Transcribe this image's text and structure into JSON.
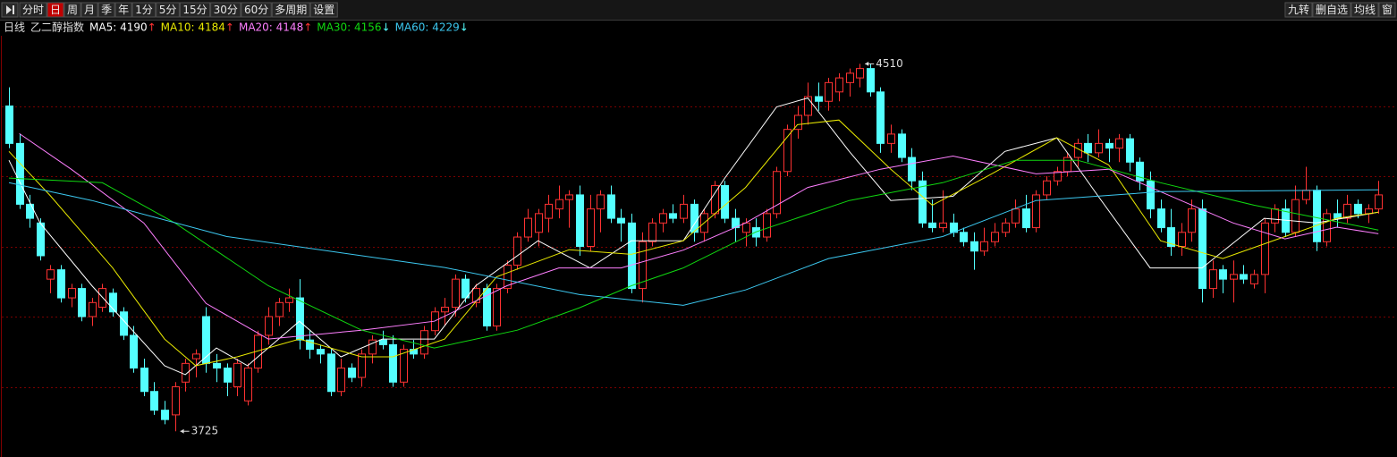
{
  "toolbar": {
    "left": [
      "分时",
      "日",
      "周",
      "月",
      "季",
      "年",
      "1分",
      "5分",
      "15分",
      "30分",
      "60分",
      "多周期",
      "设置"
    ],
    "selected_index": 1,
    "right": [
      "九转",
      "删自选",
      "均线",
      "窗"
    ]
  },
  "header": {
    "period": "日线",
    "name": "乙二醇指数"
  },
  "chart_data": {
    "type": "candlestick",
    "ylim": [
      3670,
      4570
    ],
    "yticks": [
      4420,
      4270,
      4120,
      3970,
      3820
    ],
    "grid": true,
    "up_color": "#ff3232",
    "down_color": "#54ffff",
    "open": [
      4420,
      4340,
      4210,
      4170,
      4050,
      4070,
      4010,
      4030,
      3970,
      3990,
      4020,
      3980,
      3930,
      3860,
      3810,
      3770,
      3760,
      3830,
      3880,
      3970,
      3870,
      3860,
      3820,
      3790,
      3860,
      3930,
      3970,
      4000,
      4010,
      3920,
      3900,
      3890,
      3810,
      3860,
      3840,
      3890,
      3920,
      3910,
      3830,
      3900,
      3890,
      3940,
      3980,
      3990,
      4050,
      4000,
      4030,
      3950,
      4030,
      4080,
      4140,
      4150,
      4180,
      4200,
      4220,
      4230,
      4120,
      4200,
      4230,
      4180,
      4170,
      4030,
      4130,
      4170,
      4190,
      4180,
      4210,
      4150,
      4190,
      4250,
      4180,
      4150,
      4160,
      4140,
      4190,
      4280,
      4370,
      4400,
      4440,
      4430,
      4450,
      4470,
      4480,
      4500,
      4450,
      4340,
      4360,
      4310,
      4260,
      4170,
      4160,
      4170,
      4150,
      4130,
      4110,
      4130,
      4150,
      4170,
      4200,
      4160,
      4230,
      4260,
      4280,
      4310,
      4340,
      4320,
      4340,
      4330,
      4350,
      4300,
      4260,
      4200,
      4160,
      4120,
      4150,
      4200,
      4030,
      4070,
      4050,
      4060,
      4040,
      4060,
      4170,
      4200,
      4150,
      4220,
      4240,
      4130,
      4190,
      4180,
      4210,
      4190,
      4200
    ],
    "high": [
      4460,
      4360,
      4230,
      4180,
      4080,
      4080,
      4040,
      4040,
      4010,
      4040,
      4030,
      3990,
      3950,
      3880,
      3830,
      3790,
      3830,
      3880,
      3900,
      3990,
      3890,
      3870,
      3880,
      3870,
      3940,
      3990,
      4010,
      4030,
      4050,
      3940,
      3910,
      3900,
      3880,
      3870,
      3900,
      3930,
      3940,
      3930,
      3910,
      3920,
      3950,
      3990,
      4010,
      4060,
      4060,
      4040,
      4040,
      4040,
      4090,
      4150,
      4200,
      4200,
      4230,
      4250,
      4240,
      4250,
      4230,
      4240,
      4250,
      4200,
      4190,
      4150,
      4180,
      4200,
      4210,
      4230,
      4220,
      4200,
      4260,
      4260,
      4200,
      4180,
      4180,
      4200,
      4290,
      4380,
      4420,
      4470,
      4470,
      4480,
      4490,
      4500,
      4510,
      4510,
      4460,
      4380,
      4370,
      4330,
      4280,
      4220,
      4240,
      4190,
      4160,
      4150,
      4160,
      4170,
      4180,
      4220,
      4230,
      4240,
      4270,
      4290,
      4320,
      4350,
      4360,
      4370,
      4350,
      4360,
      4360,
      4310,
      4280,
      4220,
      4200,
      4170,
      4220,
      4220,
      4090,
      4080,
      4090,
      4080,
      4070,
      4180,
      4210,
      4220,
      4250,
      4290,
      4250,
      4200,
      4220,
      4230,
      4220,
      4210,
      4260
    ],
    "low": [
      4330,
      4200,
      4160,
      4090,
      4020,
      4000,
      3990,
      3960,
      3950,
      3980,
      3970,
      3920,
      3850,
      3800,
      3760,
      3740,
      3725,
      3810,
      3840,
      3850,
      3830,
      3800,
      3800,
      3780,
      3850,
      3910,
      3950,
      3980,
      3900,
      3880,
      3870,
      3800,
      3800,
      3830,
      3820,
      3870,
      3900,
      3820,
      3820,
      3880,
      3880,
      3930,
      3950,
      3970,
      4000,
      3990,
      3940,
      3940,
      4020,
      4070,
      4130,
      4120,
      4150,
      4180,
      4160,
      4100,
      4110,
      4150,
      4170,
      4130,
      4020,
      4000,
      4120,
      4150,
      4170,
      4170,
      4130,
      4130,
      4180,
      4170,
      4130,
      4120,
      4120,
      4130,
      4180,
      4270,
      4350,
      4380,
      4410,
      4410,
      4430,
      4440,
      4460,
      4440,
      4320,
      4320,
      4300,
      4240,
      4160,
      4150,
      4150,
      4140,
      4120,
      4070,
      4100,
      4120,
      4140,
      4160,
      4150,
      4150,
      4220,
      4250,
      4270,
      4290,
      4300,
      4310,
      4300,
      4300,
      4280,
      4240,
      4180,
      4150,
      4100,
      4100,
      4130,
      4000,
      4010,
      4020,
      4000,
      4040,
      4030,
      4020,
      4150,
      4140,
      4140,
      4210,
      4110,
      4120,
      4160,
      4170,
      4180,
      4170,
      4190
    ],
    "close": [
      4340,
      4210,
      4180,
      4100,
      4070,
      4010,
      4030,
      3970,
      4000,
      4030,
      3980,
      3930,
      3860,
      3810,
      3770,
      3750,
      3820,
      3870,
      3890,
      3870,
      3860,
      3830,
      3870,
      3860,
      3930,
      3970,
      4000,
      4010,
      3920,
      3900,
      3890,
      3810,
      3860,
      3840,
      3890,
      3920,
      3910,
      3830,
      3900,
      3890,
      3940,
      3980,
      3990,
      4050,
      4010,
      4030,
      3950,
      4030,
      4080,
      4140,
      4180,
      4190,
      4210,
      4220,
      4230,
      4120,
      4200,
      4230,
      4180,
      4170,
      4030,
      4130,
      4170,
      4190,
      4180,
      4210,
      4150,
      4190,
      4250,
      4180,
      4160,
      4170,
      4140,
      4190,
      4280,
      4370,
      4400,
      4440,
      4430,
      4470,
      4480,
      4490,
      4500,
      4450,
      4340,
      4360,
      4310,
      4260,
      4170,
      4160,
      4170,
      4150,
      4130,
      4110,
      4130,
      4150,
      4170,
      4200,
      4160,
      4230,
      4260,
      4280,
      4310,
      4340,
      4320,
      4340,
      4330,
      4350,
      4300,
      4260,
      4200,
      4160,
      4120,
      4150,
      4200,
      4030,
      4070,
      4050,
      4060,
      4050,
      4060,
      4170,
      4200,
      4150,
      4220,
      4240,
      4130,
      4190,
      4180,
      4210,
      4190,
      4200,
      4230
    ],
    "series": [
      {
        "name": "MA5: 4190",
        "trend": "↑",
        "trend_color": "#ff3232",
        "color": "#ffffff",
        "x": [
          0,
          3,
          8,
          15,
          17,
          20,
          23,
          28,
          32,
          36,
          41,
          45,
          51,
          56,
          60,
          65,
          69,
          74,
          77,
          81,
          85,
          91,
          96,
          101,
          105,
          110,
          115,
          121,
          126,
          132
        ],
        "values": [
          4304,
          4170,
          4036,
          3865,
          3846,
          3903,
          3865,
          3960,
          3884,
          3922,
          3922,
          4036,
          4132,
          4074,
          4132,
          4132,
          4266,
          4418,
          4437,
          4323,
          4218,
          4227,
          4323,
          4352,
          4227,
          4074,
          4074,
          4180,
          4170,
          4193
        ]
      },
      {
        "name": "MA10: 4184",
        "trend": "↑",
        "trend_color": "#ff3232",
        "color": "#e8e800",
        "x": [
          0,
          4,
          10,
          15,
          18,
          22,
          28,
          34,
          37,
          42,
          47,
          54,
          60,
          65,
          71,
          76,
          80,
          85,
          89,
          94,
          101,
          106,
          111,
          117,
          123,
          128,
          132
        ],
        "values": [
          4323,
          4228,
          4074,
          3922,
          3865,
          3884,
          3922,
          3884,
          3884,
          3922,
          4055,
          4113,
          4103,
          4132,
          4246,
          4380,
          4390,
          4285,
          4208,
          4266,
          4352,
          4294,
          4132,
          4094,
          4141,
          4180,
          4193
        ]
      },
      {
        "name": "MA20: 4148",
        "trend": "↑",
        "trend_color": "#ff3232",
        "color": "#ff7fff",
        "x": [
          1,
          6,
          13,
          19,
          25,
          34,
          41,
          48,
          53,
          59,
          65,
          71,
          77,
          84,
          91,
          99,
          106,
          111,
          118,
          123,
          128,
          132
        ],
        "values": [
          4361,
          4285,
          4170,
          3998,
          3922,
          3941,
          3960,
          4036,
          4074,
          4074,
          4112,
          4170,
          4246,
          4285,
          4313,
          4275,
          4285,
          4237,
          4170,
          4136,
          4161,
          4147
        ]
      },
      {
        "name": "MA30: 4156",
        "trend": "↓",
        "trend_color": "#54ffff",
        "color": "#10d810",
        "x": [
          0,
          9,
          16,
          25,
          34,
          41,
          49,
          55,
          60,
          65,
          72,
          81,
          90,
          97,
          103,
          111,
          120,
          132
        ],
        "values": [
          4266,
          4256,
          4170,
          4036,
          3941,
          3903,
          3941,
          3989,
          4036,
          4074,
          4151,
          4218,
          4256,
          4304,
          4304,
          4256,
          4208,
          4155
        ]
      },
      {
        "name": "MA60: 4229",
        "trend": "↓",
        "trend_color": "#54ffff",
        "color": "#3cc8f0",
        "x": [
          0,
          8,
          21,
          42,
          55,
          65,
          71,
          79,
          90,
          99,
          111,
          132
        ],
        "values": [
          4256,
          4218,
          4141,
          4075,
          4017,
          3994,
          4027,
          4094,
          4141,
          4218,
          4237,
          4241
        ]
      }
    ],
    "annotations": [
      {
        "text": "4510",
        "x": 82,
        "y": 4510
      },
      {
        "text": "3725",
        "x": 16,
        "y": 3725
      }
    ]
  }
}
